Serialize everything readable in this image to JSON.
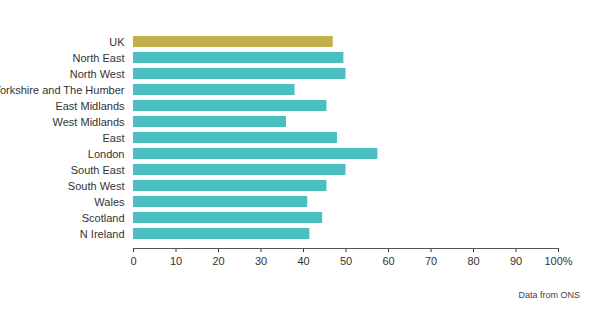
{
  "chart_data": {
    "type": "bar",
    "orientation": "horizontal",
    "categories": [
      "UK",
      "North East",
      "North West",
      "Yorkshire and The Humber",
      "East Midlands",
      "West Midlands",
      "East",
      "London",
      "South East",
      "South West",
      "Wales",
      "Scotland",
      "N Ireland"
    ],
    "values": [
      47,
      49.5,
      50,
      38,
      45.5,
      36,
      48,
      57.5,
      50,
      45.5,
      41,
      44.5,
      41.5
    ],
    "colors": [
      "#c2b04a",
      "#4bbfbf",
      "#4bbfbf",
      "#4bbfbf",
      "#4bbfbf",
      "#4bbfbf",
      "#4bbfbf",
      "#4bbfbf",
      "#4bbfbf",
      "#4bbfbf",
      "#4bbfbf",
      "#4bbfbf",
      "#4bbfbf"
    ],
    "xlim": [
      0,
      100
    ],
    "xticks": [
      0,
      10,
      20,
      30,
      40,
      50,
      60,
      70,
      80,
      90,
      {
        "value": 100,
        "label": "100%"
      }
    ],
    "grid": false,
    "caption": "Data from ONS"
  }
}
